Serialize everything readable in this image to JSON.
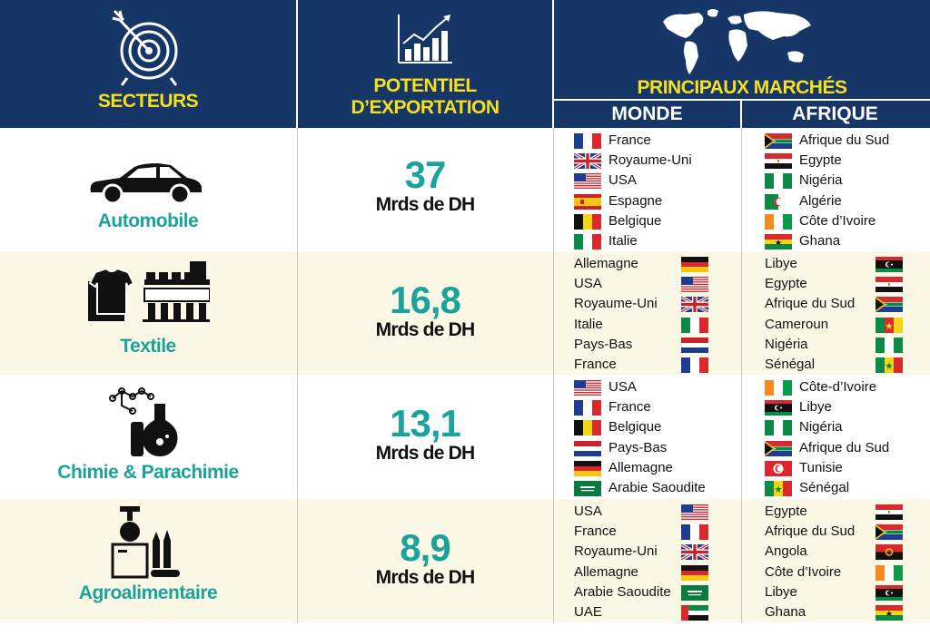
{
  "colors": {
    "header": "#163668",
    "accent_yellow": "#f6e019",
    "teal": "#1aa39a",
    "row_alt": "#fbf8e6"
  },
  "header": {
    "secteurs": "SECTEURS",
    "potentiel_line1": "POTENTIEL",
    "potentiel_line2": "D’EXPORTATION",
    "marches": "PRINCIPAUX MARCHÉS",
    "monde": "MONDE",
    "afrique": "AFRIQUE"
  },
  "sectors": [
    {
      "name": "Automobile",
      "icon": "car-icon",
      "value": "37",
      "unit": "Mrds de DH",
      "flags_first": true,
      "monde": [
        {
          "name": "France",
          "flag": "france"
        },
        {
          "name": "Royaume-Uni",
          "flag": "uk"
        },
        {
          "name": "USA",
          "flag": "usa"
        },
        {
          "name": "Espagne",
          "flag": "spain"
        },
        {
          "name": "Belgique",
          "flag": "belgium"
        },
        {
          "name": "Italie",
          "flag": "italy"
        }
      ],
      "afrique": [
        {
          "name": "Afrique du Sud",
          "flag": "south-africa"
        },
        {
          "name": "Egypte",
          "flag": "egypt"
        },
        {
          "name": "Nigéria",
          "flag": "nigeria"
        },
        {
          "name": "Algérie",
          "flag": "algeria"
        },
        {
          "name": "Côte d’Ivoire",
          "flag": "ivory-coast"
        },
        {
          "name": "Ghana",
          "flag": "ghana"
        }
      ]
    },
    {
      "name": "Textile",
      "icon": "textile-icon",
      "value": "16,8",
      "unit": "Mrds de DH",
      "flags_first": false,
      "monde": [
        {
          "name": "Allemagne",
          "flag": "germany"
        },
        {
          "name": "USA",
          "flag": "usa"
        },
        {
          "name": "Royaume-Uni",
          "flag": "uk"
        },
        {
          "name": "Italie",
          "flag": "italy"
        },
        {
          "name": "Pays-Bas",
          "flag": "netherlands"
        },
        {
          "name": "France",
          "flag": "france"
        }
      ],
      "afrique": [
        {
          "name": "Libye",
          "flag": "libya"
        },
        {
          "name": "Egypte",
          "flag": "egypt"
        },
        {
          "name": "Afrique du Sud",
          "flag": "south-africa"
        },
        {
          "name": "Cameroun",
          "flag": "cameroon"
        },
        {
          "name": "Nigéria",
          "flag": "nigeria"
        },
        {
          "name": "Sénégal",
          "flag": "senegal"
        }
      ]
    },
    {
      "name": "Chimie & Parachimie",
      "icon": "chemistry-icon",
      "value": "13,1",
      "unit": "Mrds de DH",
      "flags_first": true,
      "monde": [
        {
          "name": "USA",
          "flag": "usa"
        },
        {
          "name": "France",
          "flag": "france"
        },
        {
          "name": "Belgique",
          "flag": "belgium"
        },
        {
          "name": "Pays-Bas",
          "flag": "netherlands"
        },
        {
          "name": "Allemagne",
          "flag": "germany"
        },
        {
          "name": "Arabie Saoudite",
          "flag": "saudi-arabia"
        }
      ],
      "afrique": [
        {
          "name": "Côte-d’Ivoire",
          "flag": "ivory-coast"
        },
        {
          "name": "Libye",
          "flag": "libya"
        },
        {
          "name": "Nigéria",
          "flag": "nigeria"
        },
        {
          "name": "Afrique du Sud",
          "flag": "south-africa"
        },
        {
          "name": "Tunisie",
          "flag": "tunisia"
        },
        {
          "name": "Sénégal",
          "flag": "senegal"
        }
      ]
    },
    {
      "name": "Agroalimentaire",
      "icon": "food-factory-icon",
      "value": "8,9",
      "unit": "Mrds de DH",
      "flags_first": false,
      "monde": [
        {
          "name": "USA",
          "flag": "usa"
        },
        {
          "name": "France",
          "flag": "france"
        },
        {
          "name": "Royaume-Uni",
          "flag": "uk"
        },
        {
          "name": "Allemagne",
          "flag": "germany"
        },
        {
          "name": "Arabie Saoudite",
          "flag": "saudi-arabia"
        },
        {
          "name": "UAE",
          "flag": "uae"
        }
      ],
      "afrique": [
        {
          "name": "Egypte",
          "flag": "egypt"
        },
        {
          "name": "Afrique du Sud",
          "flag": "south-africa"
        },
        {
          "name": "Angola",
          "flag": "angola"
        },
        {
          "name": "Côte d’Ivoire",
          "flag": "ivory-coast"
        },
        {
          "name": "Libye",
          "flag": "libya"
        },
        {
          "name": "Ghana",
          "flag": "ghana"
        }
      ]
    }
  ]
}
